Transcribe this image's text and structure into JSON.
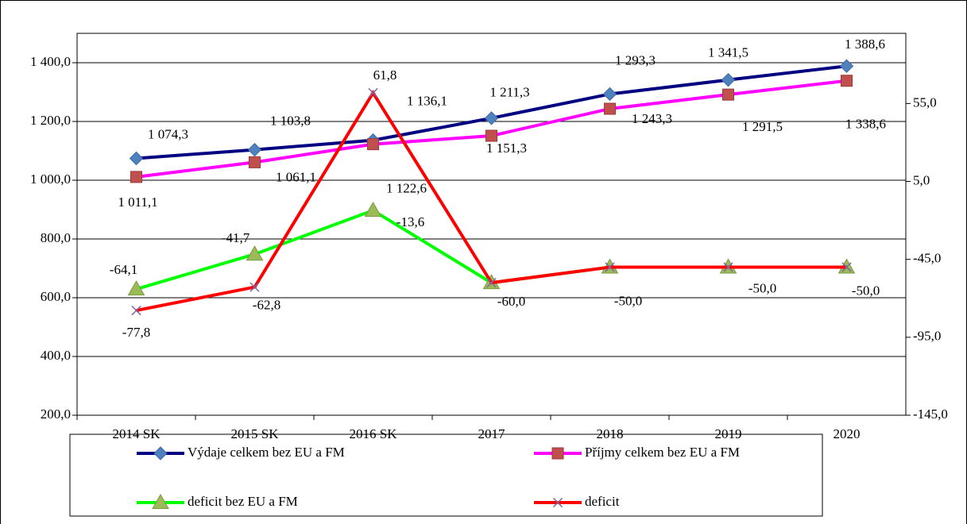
{
  "chart_data": {
    "type": "line",
    "categories": [
      "2014 SK",
      "2015 SK",
      "2016 SK",
      "2017",
      "2018",
      "2019",
      "2020"
    ],
    "ylim": [
      200,
      1500
    ],
    "yticks": [
      {
        "value": 200,
        "label": "200,0"
      },
      {
        "value": 400,
        "label": "400,0"
      },
      {
        "value": 600,
        "label": "600,0"
      },
      {
        "value": 800,
        "label": "800,0"
      },
      {
        "value": 1000,
        "label": "1 000,0"
      },
      {
        "value": 1200,
        "label": "1 200,0"
      },
      {
        "value": 1400,
        "label": "1 400,0"
      }
    ],
    "y2lim": [
      -145,
      100
    ],
    "y2ticks": [
      {
        "value": -145,
        "label": "-145,0"
      },
      {
        "value": -95,
        "label": "-95,0"
      },
      {
        "value": -45,
        "label": "-45,0"
      },
      {
        "value": 5,
        "label": "5,0"
      },
      {
        "value": 55,
        "label": "55,0"
      }
    ],
    "grid": true,
    "legend": "bottom",
    "series": [
      {
        "name": "Výdaje celkem bez EU a FM",
        "color": "#000080",
        "marker_color": "#4F81BD",
        "marker": "diamond",
        "values": [
          1074.3,
          1103.8,
          1136.1,
          1211.3,
          1293.3,
          1341.5,
          1388.6
        ],
        "value_labels": [
          "1 074,3",
          "1 103,8",
          "1 136,1",
          "1 211,3",
          "1 293,3",
          "1 341,5",
          "1 388,6"
        ]
      },
      {
        "name": "Příjmy celkem bez EU a FM",
        "color": "#FF00FF",
        "marker_color": "#C0504D",
        "marker": "square",
        "values": [
          1011.1,
          1061.1,
          1122.6,
          1151.3,
          1243.3,
          1291.5,
          1338.6
        ],
        "value_labels": [
          "1 011,1",
          "1 061,1",
          "1 122,6",
          "1 151,3",
          "1 243,3",
          "1 291,5",
          "1 338,6"
        ]
      },
      {
        "name": "deficit bez EU a FM",
        "color": "#00FF00",
        "marker_color": "#9BBB59",
        "marker": "triangle",
        "axis": "y2",
        "values": [
          -64.1,
          -41.7,
          -13.6,
          -60.0,
          -50.0,
          -50.0,
          -50.0
        ],
        "value_labels": [
          "-64,1",
          "-41,7",
          "-13,6",
          "-60,0",
          "-50,0",
          "-50,0",
          "-50,0"
        ]
      },
      {
        "name": "deficit",
        "color": "#FF0000",
        "marker_color": "#8064A2",
        "marker": "x",
        "axis": "y2",
        "values": [
          -77.8,
          -62.8,
          61.8,
          -60.0,
          -50.0,
          -50.0,
          -50.0
        ],
        "value_labels": [
          "-77,8",
          "-62,8",
          "61,8",
          null,
          null,
          null,
          null
        ]
      }
    ]
  }
}
